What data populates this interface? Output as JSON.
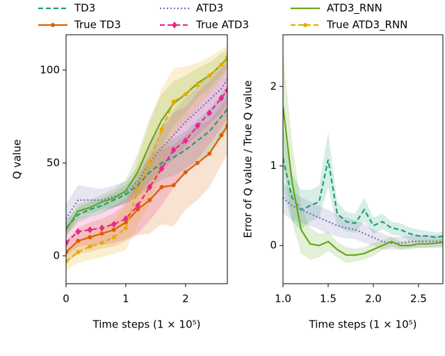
{
  "chart_data": [
    {
      "type": "line",
      "legend": "top",
      "xlabel": "Time steps (1 × 10⁵)",
      "ylabel": "Q value",
      "xlim": [
        0,
        2.7
      ],
      "ylim": [
        -15,
        119
      ],
      "xticks": [
        0,
        1,
        2
      ],
      "yticks": [
        0,
        50,
        100
      ],
      "x": [
        0,
        0.2,
        0.4,
        0.6,
        0.8,
        1.0,
        1.2,
        1.4,
        1.6,
        1.8,
        2.0,
        2.2,
        2.4,
        2.6,
        2.7
      ],
      "series": [
        {
          "name": "TD3",
          "color": "#1b9e77",
          "dash": "dashed",
          "marker": "none",
          "values": [
            15,
            22,
            25,
            27,
            30,
            33,
            38,
            45,
            50,
            53,
            57,
            62,
            67,
            75,
            79
          ],
          "spread": [
            4,
            4,
            4,
            4,
            4,
            5,
            6,
            8,
            9,
            10,
            10,
            11,
            12,
            12,
            12
          ]
        },
        {
          "name": "True TD3",
          "color": "#d95f02",
          "dash": "solid",
          "marker": "circle",
          "values": [
            2,
            8,
            10,
            12,
            14,
            18,
            25,
            30,
            37,
            38,
            45,
            50,
            55,
            65,
            70
          ],
          "spread": [
            6,
            7,
            8,
            8,
            9,
            10,
            14,
            18,
            20,
            22,
            20,
            20,
            18,
            16,
            15
          ]
        },
        {
          "name": "ATD3",
          "color": "#7570b3",
          "dash": "dotted",
          "marker": "none",
          "values": [
            20,
            30,
            30,
            30,
            32,
            34,
            40,
            50,
            58,
            65,
            72,
            78,
            84,
            90,
            95
          ],
          "spread": [
            8,
            8,
            7,
            6,
            6,
            6,
            8,
            10,
            12,
            13,
            13,
            13,
            13,
            13,
            12
          ]
        },
        {
          "name": "True ATD3",
          "color": "#e7298a",
          "dash": "dashed",
          "marker": "diamond",
          "values": [
            7,
            13,
            14,
            15,
            17,
            20,
            27,
            37,
            47,
            57,
            62,
            70,
            77,
            85,
            89
          ],
          "spread": [
            7,
            8,
            8,
            9,
            10,
            11,
            15,
            18,
            20,
            20,
            18,
            18,
            17,
            16,
            15
          ]
        },
        {
          "name": "ATD3_RNN",
          "color": "#66a61e",
          "dash": "solid",
          "marker": "none",
          "values": [
            14,
            24,
            26,
            29,
            31,
            35,
            45,
            60,
            73,
            82,
            87,
            93,
            97,
            103,
            106
          ],
          "spread": [
            4,
            4,
            4,
            4,
            5,
            6,
            10,
            14,
            14,
            12,
            10,
            8,
            7,
            6,
            5
          ]
        },
        {
          "name": "True ATD3_RNN",
          "color": "#e6ab02",
          "dash": "dashed",
          "marker": "circle",
          "values": [
            -3,
            2,
            5,
            7,
            10,
            15,
            35,
            50,
            68,
            83,
            87,
            92,
            97,
            103,
            107
          ],
          "spread": [
            5,
            6,
            7,
            8,
            9,
            12,
            18,
            22,
            22,
            18,
            15,
            12,
            10,
            8,
            6
          ]
        }
      ]
    },
    {
      "type": "line",
      "xlabel": "Time steps (1 × 10⁵)",
      "ylabel": "Error of Q value / True Q value",
      "xlim": [
        1.0,
        2.77
      ],
      "ylim": [
        -0.48,
        2.65
      ],
      "xticks": [
        {
          "value": 1.0,
          "label": "1.0"
        },
        {
          "value": 1.5,
          "label": "1.5"
        },
        {
          "value": 2.0,
          "label": "2.0"
        },
        {
          "value": 2.5,
          "label": "2.5"
        }
      ],
      "yticks": [
        0,
        1,
        2
      ],
      "x": [
        1.0,
        1.1,
        1.2,
        1.3,
        1.4,
        1.5,
        1.6,
        1.7,
        1.8,
        1.9,
        2.0,
        2.1,
        2.2,
        2.3,
        2.4,
        2.5,
        2.6,
        2.7,
        2.77
      ],
      "series": [
        {
          "color": "#1b9e77",
          "dash": "dashed",
          "marker": "none",
          "values": [
            1.1,
            0.6,
            0.45,
            0.5,
            0.55,
            1.08,
            0.4,
            0.3,
            0.28,
            0.45,
            0.25,
            0.3,
            0.22,
            0.2,
            0.15,
            0.12,
            0.12,
            0.1,
            0.12
          ],
          "spread": [
            0.4,
            0.3,
            0.25,
            0.2,
            0.2,
            0.35,
            0.15,
            0.12,
            0.12,
            0.15,
            0.1,
            0.1,
            0.08,
            0.08,
            0.08,
            0.08,
            0.06,
            0.06,
            0.06
          ]
        },
        {
          "color": "#7570b3",
          "dash": "dotted",
          "marker": "none",
          "values": [
            0.6,
            0.5,
            0.45,
            0.4,
            0.35,
            0.3,
            0.25,
            0.22,
            0.2,
            0.15,
            0.1,
            0.05,
            0.03,
            0.03,
            0.05,
            0.05,
            0.05,
            0.05,
            0.05
          ],
          "spread": [
            0.2,
            0.18,
            0.16,
            0.15,
            0.15,
            0.15,
            0.14,
            0.13,
            0.12,
            0.12,
            0.1,
            0.1,
            0.08,
            0.08,
            0.08,
            0.08,
            0.08,
            0.08,
            0.08
          ]
        },
        {
          "color": "#66a61e",
          "dash": "solid",
          "marker": "none",
          "values": [
            1.75,
            0.8,
            0.2,
            0.02,
            0.0,
            0.05,
            -0.05,
            -0.12,
            -0.12,
            -0.1,
            -0.05,
            0.0,
            0.05,
            0.0,
            0.0,
            0.02,
            0.02,
            0.03,
            0.04
          ],
          "spread": [
            0.7,
            0.5,
            0.3,
            0.2,
            0.15,
            0.12,
            0.1,
            0.1,
            0.08,
            0.08,
            0.08,
            0.06,
            0.06,
            0.05,
            0.05,
            0.05,
            0.05,
            0.05,
            0.05
          ]
        }
      ]
    }
  ]
}
